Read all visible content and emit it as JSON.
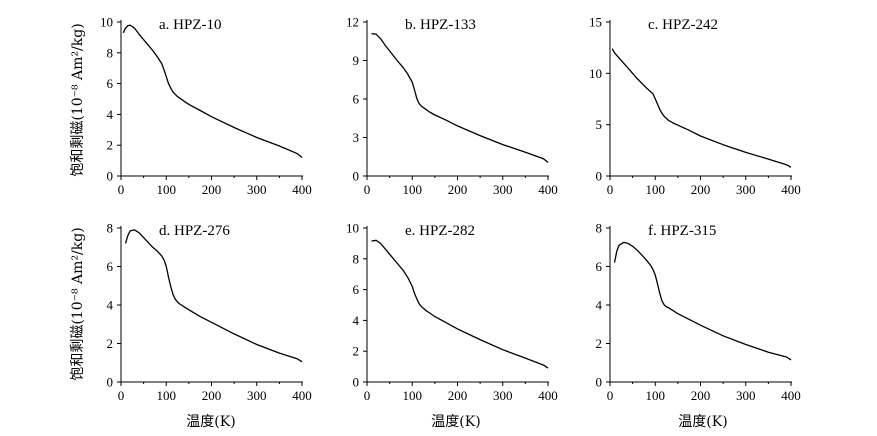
{
  "figure": {
    "ylabel": "饱和剩磁(10⁻⁸ Am²/kg)",
    "xlabel": "温度(K)"
  },
  "chart_data": [
    {
      "type": "line",
      "title": "a. HPZ-10",
      "xlim": [
        0,
        400
      ],
      "ylim": [
        0,
        10
      ],
      "xticks": [
        0,
        100,
        200,
        300,
        400
      ],
      "yticks": [
        0,
        2,
        4,
        6,
        8,
        10
      ],
      "x": [
        5,
        10,
        15,
        20,
        30,
        40,
        50,
        60,
        70,
        80,
        90,
        95,
        100,
        105,
        110,
        115,
        120,
        125,
        130,
        140,
        150,
        175,
        200,
        250,
        300,
        350,
        390,
        400
      ],
      "y": [
        9.3,
        9.6,
        9.75,
        9.8,
        9.6,
        9.2,
        8.85,
        8.5,
        8.15,
        7.75,
        7.3,
        6.9,
        6.45,
        6.0,
        5.7,
        5.45,
        5.3,
        5.15,
        5.05,
        4.85,
        4.65,
        4.25,
        3.85,
        3.15,
        2.5,
        1.95,
        1.45,
        1.2
      ]
    },
    {
      "type": "line",
      "title": "b. HPZ-133",
      "xlim": [
        0,
        400
      ],
      "ylim": [
        0,
        12
      ],
      "xticks": [
        0,
        100,
        200,
        300,
        400
      ],
      "yticks": [
        0,
        3,
        6,
        9,
        12
      ],
      "x": [
        10,
        20,
        30,
        40,
        50,
        60,
        70,
        80,
        90,
        100,
        105,
        110,
        115,
        120,
        130,
        140,
        150,
        175,
        200,
        250,
        300,
        350,
        390,
        400
      ],
      "y": [
        11.1,
        11.05,
        10.7,
        10.2,
        9.75,
        9.3,
        8.85,
        8.45,
        7.95,
        7.3,
        6.7,
        6.05,
        5.65,
        5.45,
        5.2,
        4.95,
        4.75,
        4.35,
        3.9,
        3.15,
        2.45,
        1.85,
        1.35,
        1.05
      ]
    },
    {
      "type": "line",
      "title": "c. HPZ-242",
      "xlim": [
        0,
        400
      ],
      "ylim": [
        0,
        15
      ],
      "xticks": [
        0,
        100,
        200,
        300,
        400
      ],
      "yticks": [
        0,
        5,
        10,
        15
      ],
      "x": [
        5,
        10,
        20,
        40,
        60,
        80,
        95,
        100,
        105,
        110,
        115,
        120,
        130,
        140,
        150,
        175,
        200,
        250,
        300,
        350,
        390,
        400
      ],
      "y": [
        12.4,
        12.0,
        11.5,
        10.5,
        9.5,
        8.6,
        8.0,
        7.5,
        7.0,
        6.5,
        6.1,
        5.8,
        5.4,
        5.15,
        4.95,
        4.45,
        3.9,
        3.05,
        2.3,
        1.65,
        1.1,
        0.85
      ]
    },
    {
      "type": "line",
      "title": "d. HPZ-276",
      "xlim": [
        0,
        400
      ],
      "ylim": [
        0,
        8
      ],
      "xticks": [
        0,
        100,
        200,
        300,
        400
      ],
      "yticks": [
        0,
        2,
        4,
        6,
        8
      ],
      "x": [
        10,
        15,
        20,
        30,
        40,
        50,
        60,
        70,
        80,
        90,
        95,
        100,
        105,
        110,
        115,
        120,
        125,
        130,
        140,
        150,
        175,
        200,
        250,
        300,
        350,
        390,
        400
      ],
      "y": [
        7.2,
        7.6,
        7.85,
        7.9,
        7.75,
        7.5,
        7.25,
        7.0,
        6.8,
        6.55,
        6.35,
        6.0,
        5.45,
        4.95,
        4.55,
        4.3,
        4.15,
        4.05,
        3.9,
        3.75,
        3.4,
        3.1,
        2.5,
        1.95,
        1.5,
        1.2,
        1.05
      ]
    },
    {
      "type": "line",
      "title": "e. HPZ-282",
      "xlim": [
        0,
        400
      ],
      "ylim": [
        0,
        10
      ],
      "xticks": [
        0,
        100,
        200,
        300,
        400
      ],
      "yticks": [
        0,
        2,
        4,
        6,
        8,
        10
      ],
      "x": [
        10,
        20,
        30,
        40,
        50,
        60,
        70,
        80,
        90,
        100,
        105,
        110,
        115,
        120,
        130,
        140,
        150,
        175,
        200,
        250,
        300,
        350,
        390,
        400
      ],
      "y": [
        9.15,
        9.2,
        9.0,
        8.65,
        8.3,
        7.95,
        7.6,
        7.25,
        6.8,
        6.2,
        5.75,
        5.4,
        5.1,
        4.9,
        4.65,
        4.45,
        4.25,
        3.85,
        3.45,
        2.75,
        2.1,
        1.55,
        1.1,
        0.9
      ]
    },
    {
      "type": "line",
      "title": "f. HPZ-315",
      "xlim": [
        0,
        400
      ],
      "ylim": [
        0,
        8
      ],
      "xticks": [
        0,
        100,
        200,
        300,
        400
      ],
      "yticks": [
        0,
        2,
        4,
        6,
        8
      ],
      "x": [
        10,
        15,
        20,
        30,
        40,
        50,
        60,
        70,
        80,
        90,
        95,
        100,
        105,
        110,
        115,
        120,
        125,
        130,
        140,
        150,
        175,
        200,
        250,
        300,
        350,
        390,
        400
      ],
      "y": [
        6.2,
        6.8,
        7.1,
        7.25,
        7.2,
        7.05,
        6.85,
        6.6,
        6.35,
        6.05,
        5.85,
        5.55,
        5.1,
        4.6,
        4.2,
        4.0,
        3.9,
        3.85,
        3.7,
        3.55,
        3.25,
        2.95,
        2.4,
        1.95,
        1.55,
        1.3,
        1.15
      ]
    }
  ]
}
